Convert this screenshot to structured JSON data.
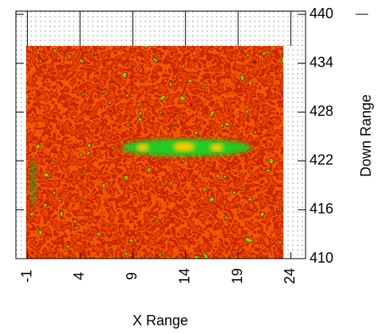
{
  "chart_data": {
    "type": "heatmap",
    "xlabel": "X Range",
    "ylabel": "Down Range",
    "xlim": [
      -2.1,
      25.4
    ],
    "xticks": [
      -1,
      4,
      9,
      14,
      19,
      24
    ],
    "ylim": [
      410,
      440.4
    ],
    "yticks": [
      410,
      416,
      422,
      428,
      434,
      440
    ]
  }
}
